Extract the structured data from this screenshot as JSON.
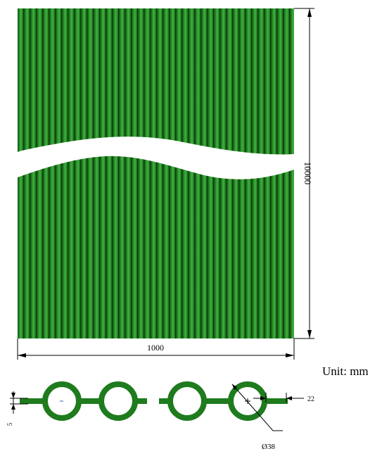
{
  "panel": {
    "width_dimension": "1000",
    "height_dimension": "10000",
    "tube_color": "#1f7a1f",
    "tube_highlight": "#3fb23f",
    "tube_shadow": "#0f4f0f"
  },
  "unit_label": "Unit: mm",
  "cross_section": {
    "tube_count_shown": 4,
    "pitch_dimension": "22",
    "fin_thickness_dimension": "5",
    "diameter_dimension": "Ø38",
    "tube_color": "#1e7b1e"
  }
}
